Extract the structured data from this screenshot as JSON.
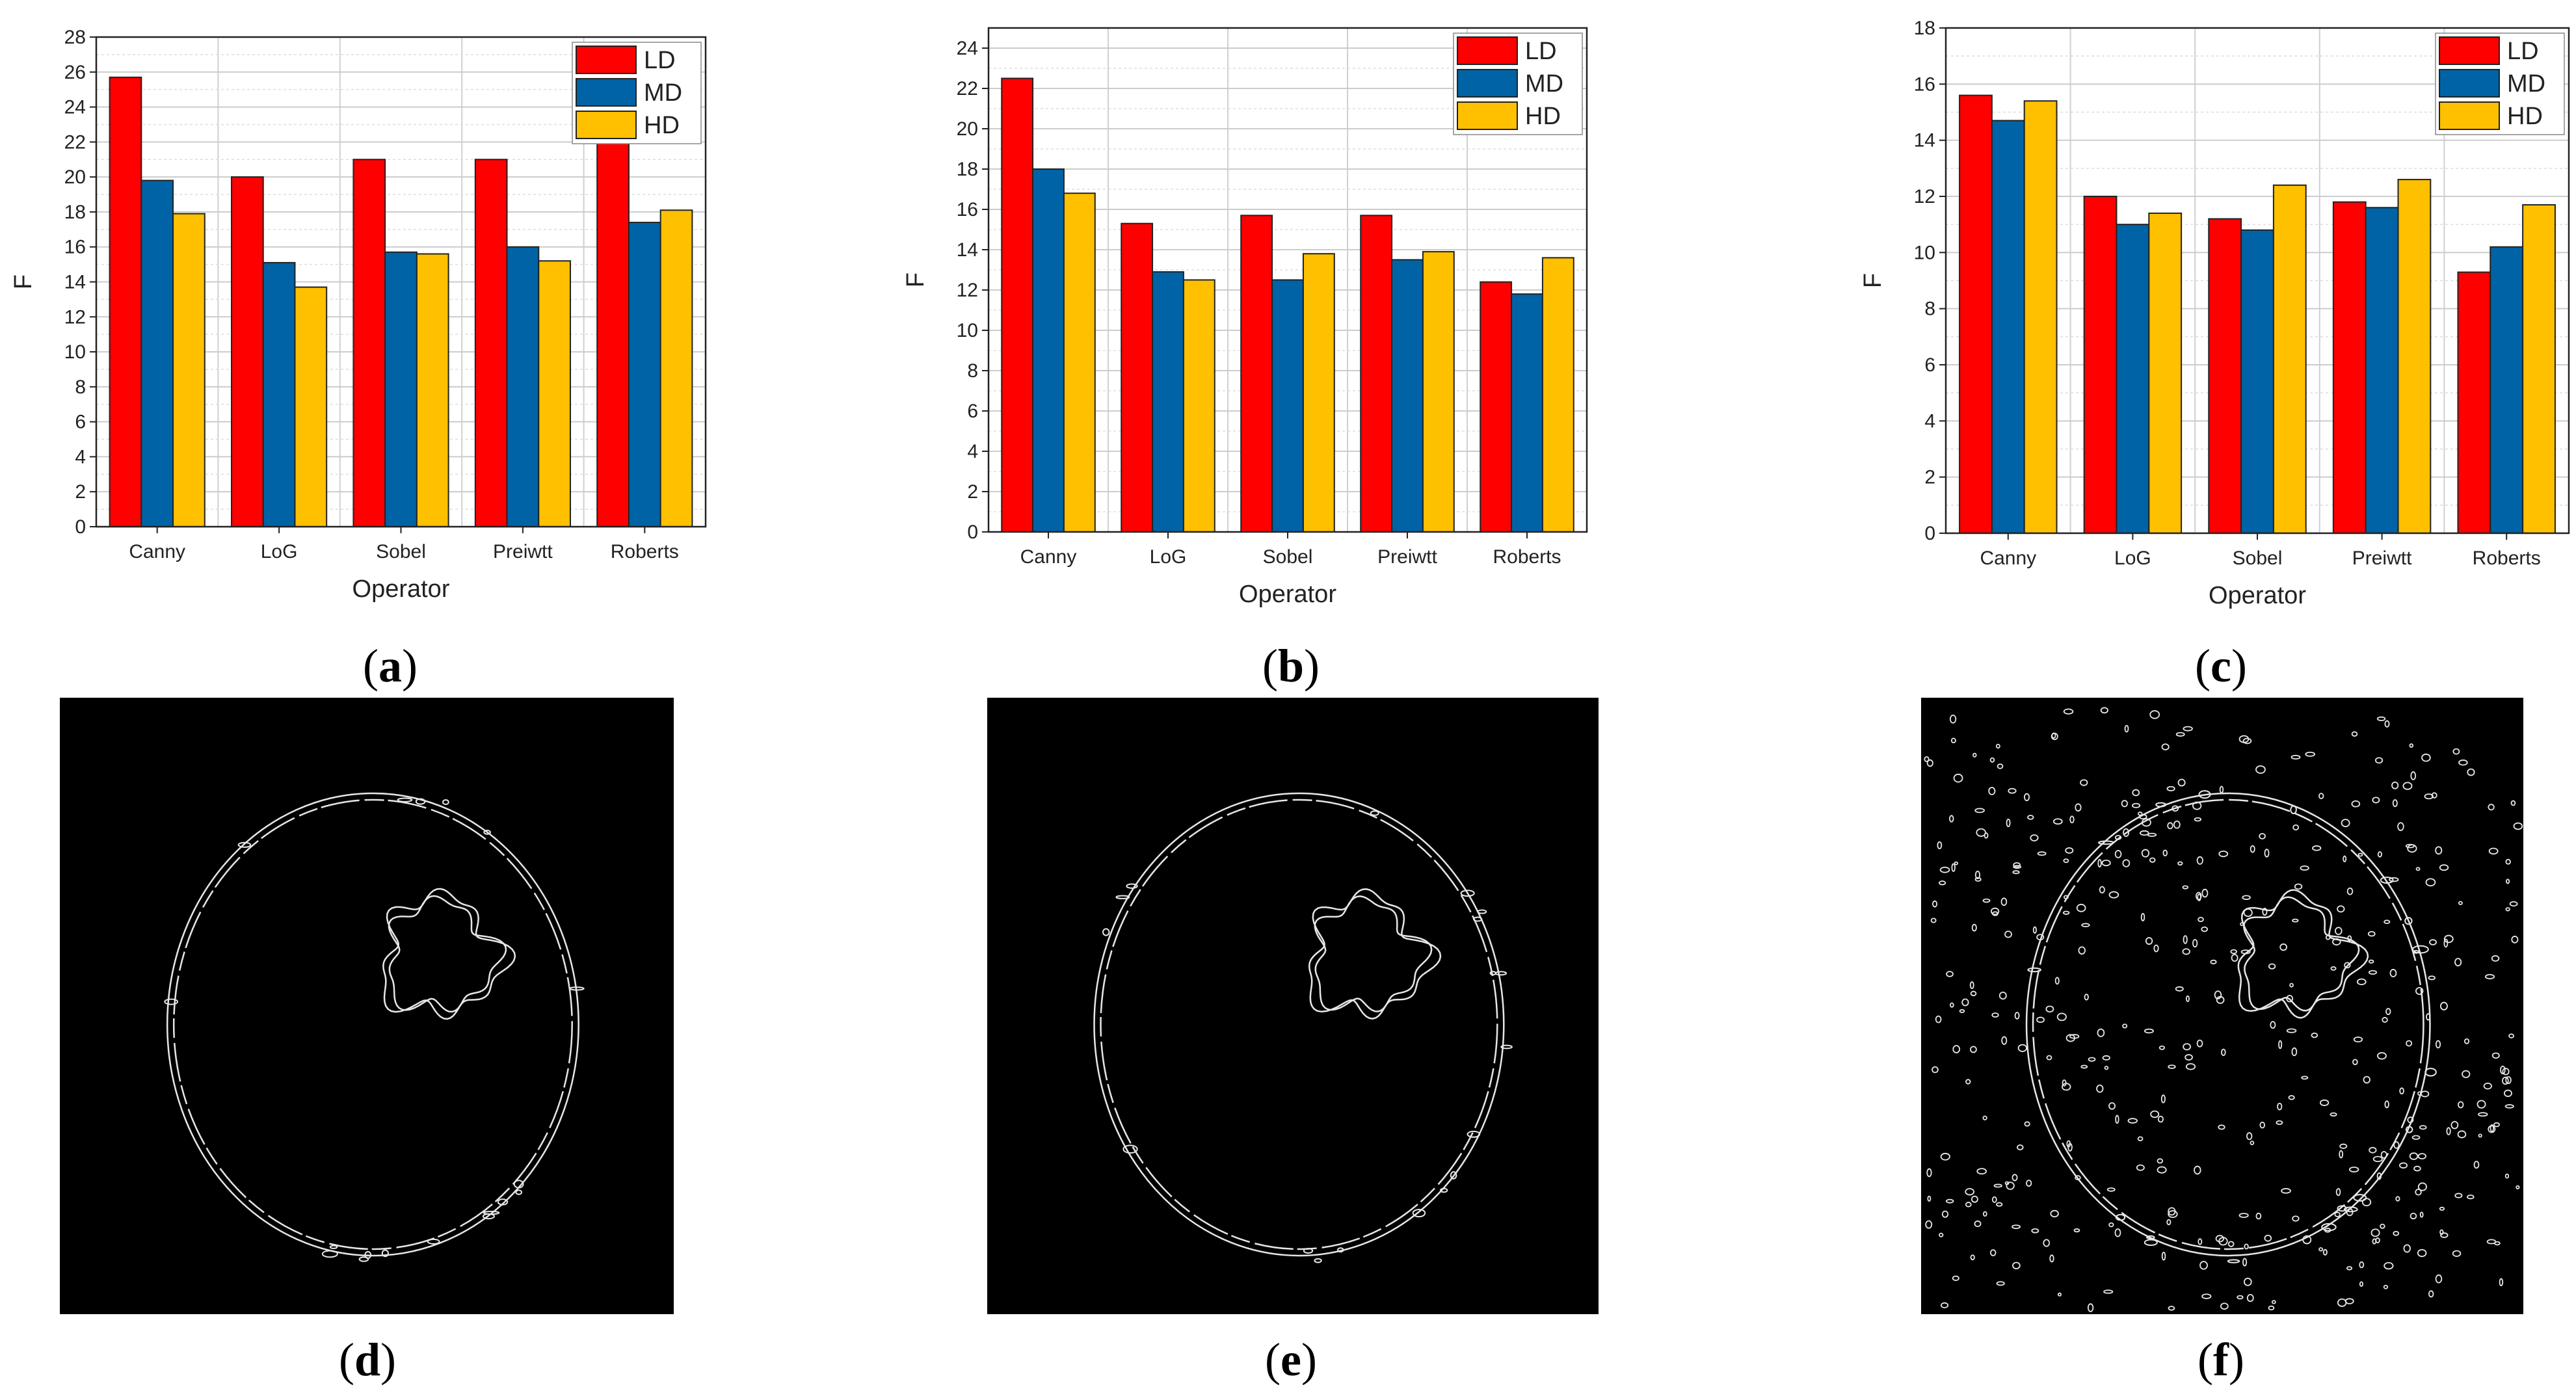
{
  "colors": {
    "LD": "#ff0000",
    "MD": "#0063a6",
    "HD": "#ffc000",
    "edge_bg": "#000000",
    "edge_line": "#e6e6e6"
  },
  "panel_labels": {
    "a": "a",
    "b": "b",
    "c": "c",
    "d": "d",
    "e": "e",
    "f": "f"
  },
  "chart_data": [
    {
      "type": "bar",
      "categories": [
        "Canny",
        "LoG",
        "Sobel",
        "Preiwtt",
        "Roberts"
      ],
      "series": [
        {
          "name": "LD",
          "values": [
            25.7,
            20.0,
            21.0,
            21.0,
            23.9
          ]
        },
        {
          "name": "MD",
          "values": [
            19.8,
            15.1,
            15.7,
            16.0,
            17.4
          ]
        },
        {
          "name": "HD",
          "values": [
            17.9,
            13.7,
            15.6,
            15.2,
            18.1
          ]
        }
      ],
      "xlabel": "Operator",
      "ylabel": "F",
      "ylim": [
        0,
        28
      ],
      "yticks": [
        0,
        2,
        4,
        6,
        8,
        10,
        12,
        14,
        16,
        18,
        20,
        22,
        24,
        26,
        28
      ],
      "grid": true,
      "legend": "top-right"
    },
    {
      "type": "bar",
      "categories": [
        "Canny",
        "LoG",
        "Sobel",
        "Preiwtt",
        "Roberts"
      ],
      "series": [
        {
          "name": "LD",
          "values": [
            22.5,
            15.3,
            15.7,
            15.7,
            12.4
          ]
        },
        {
          "name": "MD",
          "values": [
            18.0,
            12.9,
            12.5,
            13.5,
            11.8
          ]
        },
        {
          "name": "HD",
          "values": [
            16.8,
            12.5,
            13.8,
            13.9,
            13.6
          ]
        }
      ],
      "xlabel": "Operator",
      "ylabel": "F",
      "ylim": [
        0,
        25
      ],
      "yticks": [
        0,
        2,
        4,
        6,
        8,
        10,
        12,
        14,
        16,
        18,
        20,
        22,
        24
      ],
      "grid": true,
      "legend": "top-right"
    },
    {
      "type": "bar",
      "categories": [
        "Canny",
        "LoG",
        "Sobel",
        "Preiwtt",
        "Roberts"
      ],
      "series": [
        {
          "name": "LD",
          "values": [
            15.6,
            12.0,
            11.2,
            11.8,
            9.3
          ]
        },
        {
          "name": "MD",
          "values": [
            14.7,
            11.0,
            10.8,
            11.6,
            10.2
          ]
        },
        {
          "name": "HD",
          "values": [
            15.4,
            11.4,
            12.4,
            12.6,
            11.7
          ]
        }
      ],
      "xlabel": "Operator",
      "ylabel": "F",
      "ylim": [
        0,
        18
      ],
      "yticks": [
        0,
        2,
        4,
        6,
        8,
        10,
        12,
        14,
        16,
        18
      ],
      "grid": true,
      "legend": "top-right"
    }
  ],
  "edge_images": [
    {
      "panel": "d",
      "noise": 0
    },
    {
      "panel": "e",
      "noise": 0
    },
    {
      "panel": "f",
      "noise": 420
    }
  ]
}
